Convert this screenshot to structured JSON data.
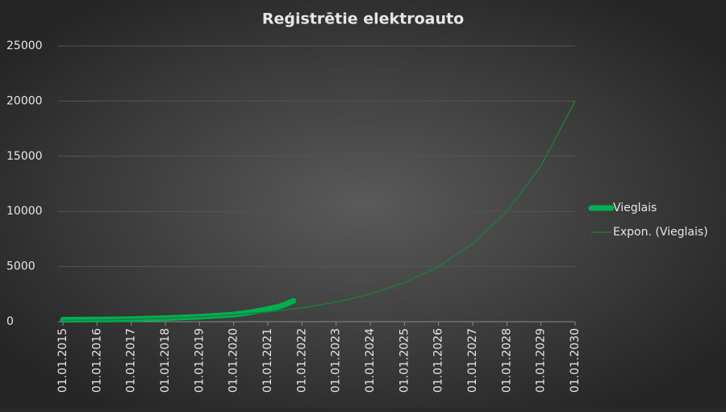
{
  "chart_data": {
    "type": "line",
    "title": "Reģistrētie elektroauto",
    "xlim": [
      2015,
      2030
    ],
    "xticks": [
      {
        "value": 2015,
        "label": "01.01.2015"
      },
      {
        "value": 2016,
        "label": "01.01.2016"
      },
      {
        "value": 2017,
        "label": "01.01.2017"
      },
      {
        "value": 2018,
        "label": "01.01.2018"
      },
      {
        "value": 2019,
        "label": "01.01.2019"
      },
      {
        "value": 2020,
        "label": "01.01.2020"
      },
      {
        "value": 2021,
        "label": "01.01.2021"
      },
      {
        "value": 2022,
        "label": "01.01.2022"
      },
      {
        "value": 2023,
        "label": "01.01.2023"
      },
      {
        "value": 2024,
        "label": "01.01.2024"
      },
      {
        "value": 2025,
        "label": "01.01.2025"
      },
      {
        "value": 2026,
        "label": "01.01.2026"
      },
      {
        "value": 2027,
        "label": "01.01.2027"
      },
      {
        "value": 2028,
        "label": "01.01.2028"
      },
      {
        "value": 2029,
        "label": "01.01.2029"
      },
      {
        "value": 2030,
        "label": "01.01.2030"
      }
    ],
    "ylim": [
      0,
      25000
    ],
    "yticks": [
      0,
      5000,
      10000,
      15000,
      20000,
      25000
    ],
    "grid": true,
    "legend": "right",
    "series": [
      {
        "name": "Vieglais",
        "color": "#00b050",
        "width": 7,
        "x": [
          2015,
          2015.5,
          2016,
          2016.5,
          2017,
          2017.5,
          2018,
          2018.5,
          2019,
          2019.5,
          2020,
          2020.5,
          2021,
          2021.3,
          2021.5,
          2021.75
        ],
        "values": [
          180,
          190,
          200,
          210,
          240,
          280,
          320,
          380,
          450,
          550,
          650,
          850,
          1150,
          1350,
          1550,
          1900
        ]
      },
      {
        "name": "Expon. (Vieglais)",
        "color": "#1e7a3a",
        "width": 1.5,
        "x": [
          2015,
          2016,
          2017,
          2018,
          2019,
          2020,
          2021,
          2022,
          2023,
          2024,
          2025,
          2026,
          2027,
          2028,
          2029,
          2030
        ],
        "values": [
          110,
          155,
          220,
          315,
          440,
          625,
          885,
          1250,
          1770,
          2500,
          3540,
          5000,
          7070,
          10000,
          14140,
          20000
        ]
      }
    ]
  }
}
